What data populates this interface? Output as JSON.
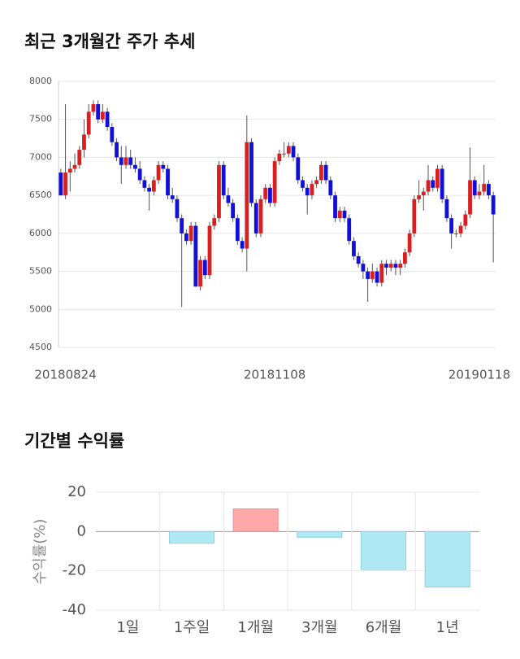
{
  "chart_data": [
    {
      "type": "candlestick",
      "title": "최근 3개월간 주가 추세",
      "categories": [
        null,
        "20180824",
        null,
        null,
        null,
        null,
        null,
        null,
        null,
        null,
        null,
        null,
        null,
        null,
        null,
        null,
        null,
        null,
        null,
        null,
        null,
        null,
        null,
        null,
        null,
        null,
        null,
        null,
        null,
        null,
        null,
        null,
        null,
        null,
        null,
        null,
        null,
        null,
        null,
        null,
        null,
        null,
        null,
        null,
        null,
        null,
        "20181108",
        null,
        null,
        null,
        null,
        null,
        null,
        null,
        null,
        null,
        null,
        null,
        null,
        null,
        null,
        null,
        null,
        null,
        null,
        null,
        null,
        null,
        null,
        null,
        null,
        null,
        null,
        null,
        null,
        null,
        null,
        null,
        null,
        null,
        null,
        null,
        null,
        null,
        null,
        null,
        null,
        null,
        null,
        null,
        "20190118",
        null,
        null,
        null
      ],
      "ohlc": [
        [
          6800,
          6850,
          6500,
          6500
        ],
        [
          6500,
          7700,
          6450,
          6800
        ],
        [
          6800,
          6950,
          6550,
          6850
        ],
        [
          6850,
          7050,
          6800,
          6900
        ],
        [
          6900,
          7150,
          6850,
          7100
        ],
        [
          7100,
          7500,
          7000,
          7300
        ],
        [
          7300,
          7700,
          7250,
          7600
        ],
        [
          7600,
          7750,
          7550,
          7700
        ],
        [
          7700,
          7750,
          7450,
          7500
        ],
        [
          7500,
          7700,
          7450,
          7600
        ],
        [
          7600,
          7650,
          7350,
          7400
        ],
        [
          7400,
          7450,
          7150,
          7200
        ],
        [
          7200,
          7250,
          6950,
          7000
        ],
        [
          7000,
          7150,
          6650,
          6900
        ],
        [
          6900,
          7150,
          6850,
          7000
        ],
        [
          7000,
          7100,
          6850,
          6900
        ],
        [
          6900,
          7000,
          6800,
          6850
        ],
        [
          6850,
          6950,
          6650,
          6700
        ],
        [
          6700,
          6750,
          6550,
          6600
        ],
        [
          6600,
          6650,
          6300,
          6550
        ],
        [
          6550,
          6750,
          6500,
          6700
        ],
        [
          6700,
          6950,
          6650,
          6900
        ],
        [
          6900,
          6950,
          6800,
          6850
        ],
        [
          6850,
          6900,
          6450,
          6500
        ],
        [
          6500,
          6600,
          6400,
          6450
        ],
        [
          6450,
          6500,
          6150,
          6200
        ],
        [
          6200,
          6250,
          5030,
          6000
        ],
        [
          6000,
          6050,
          5850,
          5900
        ],
        [
          5900,
          6150,
          5850,
          6100
        ],
        [
          6100,
          6150,
          5300,
          5300
        ],
        [
          5300,
          5700,
          5250,
          5650
        ],
        [
          5650,
          5700,
          5400,
          5450
        ],
        [
          5450,
          6150,
          5400,
          6100
        ],
        [
          6100,
          6250,
          6050,
          6200
        ],
        [
          6200,
          6950,
          6150,
          6900
        ],
        [
          6900,
          6950,
          6450,
          6500
        ],
        [
          6500,
          6600,
          6350,
          6400
        ],
        [
          6400,
          6450,
          6150,
          6200
        ],
        [
          6200,
          6250,
          5850,
          5900
        ],
        [
          5900,
          5950,
          5750,
          5800
        ],
        [
          5800,
          7550,
          5500,
          7200
        ],
        [
          7200,
          7250,
          6350,
          6400
        ],
        [
          6400,
          6450,
          5950,
          6000
        ],
        [
          6000,
          6500,
          5950,
          6450
        ],
        [
          6450,
          6650,
          6400,
          6600
        ],
        [
          6600,
          6650,
          6350,
          6400
        ],
        [
          6400,
          7000,
          6350,
          6950
        ],
        [
          6950,
          7100,
          6900,
          7050
        ],
        [
          7050,
          7200,
          7000,
          7050
        ],
        [
          7050,
          7200,
          7000,
          7150
        ],
        [
          7150,
          7200,
          6950,
          7000
        ],
        [
          7000,
          7050,
          6650,
          6700
        ],
        [
          6700,
          6750,
          6550,
          6600
        ],
        [
          6600,
          6650,
          6250,
          6500
        ],
        [
          6500,
          6700,
          6450,
          6650
        ],
        [
          6650,
          6750,
          6600,
          6700
        ],
        [
          6700,
          6950,
          6650,
          6900
        ],
        [
          6900,
          6950,
          6650,
          6700
        ],
        [
          6700,
          6750,
          6450,
          6500
        ],
        [
          6500,
          6550,
          6150,
          6200
        ],
        [
          6200,
          6350,
          6150,
          6300
        ],
        [
          6300,
          6350,
          6150,
          6200
        ],
        [
          6200,
          6250,
          5850,
          5900
        ],
        [
          5900,
          5950,
          5650,
          5700
        ],
        [
          5700,
          5750,
          5550,
          5600
        ],
        [
          5600,
          5650,
          5400,
          5500
        ],
        [
          5500,
          5550,
          5100,
          5400
        ],
        [
          5400,
          5600,
          5350,
          5500
        ],
        [
          5500,
          5550,
          5300,
          5350
        ],
        [
          5350,
          5650,
          5300,
          5600
        ],
        [
          5600,
          5650,
          5450,
          5550
        ],
        [
          5550,
          5650,
          5500,
          5600
        ],
        [
          5600,
          5650,
          5450,
          5550
        ],
        [
          5550,
          5650,
          5450,
          5600
        ],
        [
          5600,
          5800,
          5550,
          5750
        ],
        [
          5750,
          6050,
          5700,
          6000
        ],
        [
          6000,
          6500,
          5950,
          6450
        ],
        [
          6450,
          6700,
          6400,
          6500
        ],
        [
          6500,
          6600,
          6300,
          6550
        ],
        [
          6550,
          6900,
          6500,
          6700
        ],
        [
          6700,
          6750,
          6550,
          6600
        ],
        [
          6600,
          6900,
          6550,
          6850
        ],
        [
          6850,
          6900,
          6400,
          6450
        ],
        [
          6450,
          6500,
          6150,
          6200
        ],
        [
          6200,
          6250,
          5800,
          6000
        ],
        [
          6000,
          6050,
          5950,
          6000
        ],
        [
          6000,
          6150,
          5950,
          6100
        ],
        [
          6100,
          6300,
          6050,
          6250
        ],
        [
          6250,
          7130,
          6200,
          6700
        ],
        [
          6700,
          6750,
          6450,
          6500
        ],
        [
          6500,
          6650,
          6450,
          6550
        ],
        [
          6550,
          6900,
          6500,
          6650
        ],
        [
          6650,
          6700,
          6450,
          6500
        ],
        [
          6500,
          6550,
          5620,
          6250
        ]
      ],
      "up_color": "#d91f1f",
      "down_color": "#1010d8",
      "ylim": [
        4500,
        8000
      ],
      "yticks": [
        4500,
        5000,
        5500,
        6000,
        6500,
        7000,
        7500,
        8000
      ],
      "grid": true
    },
    {
      "type": "bar",
      "title": "기간별 수익률",
      "ylabel": "수익률(%)",
      "categories": [
        "1일",
        "1주일",
        "1개월",
        "3개월",
        "6개월",
        "1년"
      ],
      "values": [
        0,
        -5.9,
        11.5,
        -2.9,
        -19.3,
        -28.2
      ],
      "positive_color": "#ffa8a8",
      "negative_color": "#aee9f4",
      "ylim": [
        -40,
        20
      ],
      "yticks": [
        -40,
        -20,
        0,
        20
      ],
      "grid": true
    }
  ]
}
